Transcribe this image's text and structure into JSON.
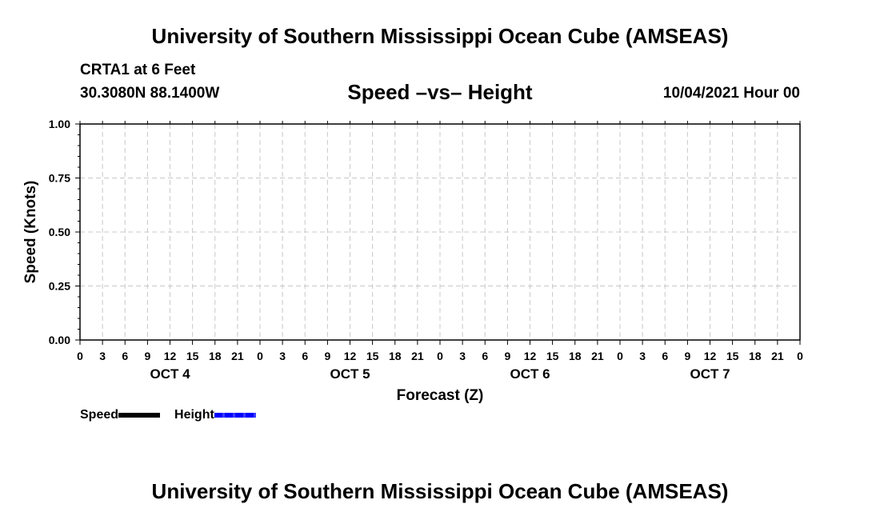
{
  "header": {
    "title": "University of Southern Mississippi Ocean Cube (AMSEAS)",
    "station": "CRTA1 at 6 Feet",
    "coords": "30.3080N  88.1400W",
    "subtitle": "Speed –vs– Height",
    "datetime": "10/04/2021 Hour 00"
  },
  "footer": {
    "title": "University of Southern Mississippi Ocean Cube (AMSEAS)"
  },
  "colors": {
    "speed": "#000000",
    "height": "#0000ff",
    "grid": "#c8c8c8"
  },
  "chart_data": {
    "type": "line",
    "title": "Speed –vs– Height",
    "xlabel": "Forecast (Z)",
    "ylabel": "Speed (Knots)",
    "ylim": [
      0,
      1
    ],
    "y_ticks": [
      "0.00",
      "0.25",
      "0.50",
      "0.75",
      "1.00"
    ],
    "x_range_hours": [
      0,
      96
    ],
    "x_ticks": [
      "0",
      "3",
      "6",
      "9",
      "12",
      "15",
      "18",
      "21",
      "0",
      "3",
      "6",
      "9",
      "12",
      "15",
      "18",
      "21",
      "0",
      "3",
      "6",
      "9",
      "12",
      "15",
      "18",
      "21",
      "0",
      "3",
      "6",
      "9",
      "12",
      "15",
      "18",
      "21",
      "0"
    ],
    "day_labels": [
      "OCT 4",
      "OCT 5",
      "OCT 6",
      "OCT 7"
    ],
    "grid": true,
    "series": [
      {
        "name": "Speed",
        "style": "solid",
        "values": []
      },
      {
        "name": "Height",
        "style": "dashed",
        "values": []
      }
    ],
    "legend": [
      "Speed",
      "Height"
    ]
  }
}
